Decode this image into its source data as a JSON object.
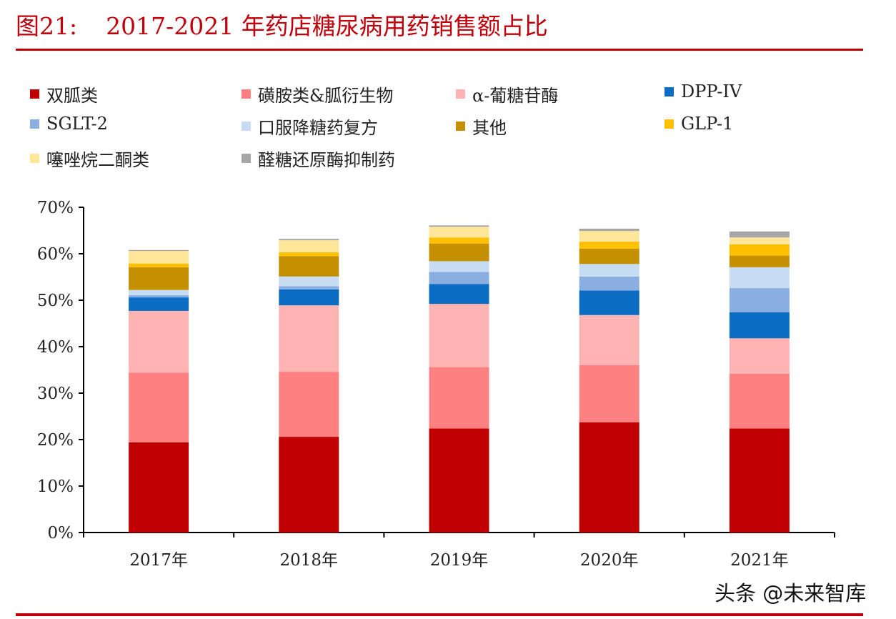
{
  "title": {
    "label": "图21:",
    "text": "2017-2021 年药店糖尿病用药销售额占比"
  },
  "watermark": "头条 @未来智库",
  "colors": {
    "accent": "#c0000b"
  },
  "chart_data": {
    "type": "bar",
    "stacked": true,
    "categories": [
      "2017年",
      "2018年",
      "2019年",
      "2020年",
      "2021年"
    ],
    "ylim": [
      0,
      70
    ],
    "y_ticks": [
      "0%",
      "10%",
      "20%",
      "30%",
      "40%",
      "50%",
      "60%",
      "70%"
    ],
    "y_unit": "%",
    "grid": false,
    "legend_position": "top",
    "series": [
      {
        "name": "双胍类",
        "color": "#c00000",
        "values": [
          19.4,
          20.6,
          22.4,
          23.7,
          22.4
        ]
      },
      {
        "name": "磺胺类&胍衍生物",
        "color": "#ff8080",
        "values": [
          15.0,
          14.0,
          13.2,
          12.3,
          11.8
        ]
      },
      {
        "name": "α-葡糖苷酶",
        "color": "#ffb3b3",
        "values": [
          13.3,
          14.3,
          13.6,
          10.8,
          7.6
        ]
      },
      {
        "name": "DPP-IV",
        "color": "#0b6cc4",
        "values": [
          2.9,
          3.4,
          4.3,
          5.3,
          5.6
        ]
      },
      {
        "name": "SGLT-2",
        "color": "#8aaee0",
        "values": [
          0.5,
          0.7,
          2.6,
          3.0,
          5.2
        ]
      },
      {
        "name": "口服降糖药复方",
        "color": "#c5dcf3",
        "values": [
          1.1,
          2.1,
          2.3,
          2.7,
          4.5
        ]
      },
      {
        "name": "其他",
        "color": "#c49000",
        "values": [
          4.9,
          4.4,
          3.8,
          3.3,
          2.5
        ]
      },
      {
        "name": "GLP-1",
        "color": "#ffc000",
        "values": [
          0.8,
          0.8,
          1.3,
          1.5,
          2.4
        ]
      },
      {
        "name": "噻唑烷二酮类",
        "color": "#ffe699",
        "values": [
          2.7,
          2.6,
          2.3,
          2.3,
          1.5
        ]
      },
      {
        "name": "醛糖还原酶抑制药",
        "color": "#a6a6a6",
        "values": [
          0.2,
          0.3,
          0.3,
          0.5,
          1.3
        ]
      }
    ]
  }
}
